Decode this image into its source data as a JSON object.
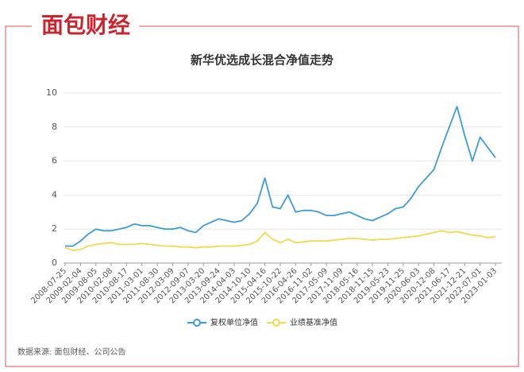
{
  "chart_data": {
    "type": "line",
    "logo": "面包财经",
    "title": "新华优选成长混合净值走势",
    "source": "数据来源: 面包财经、公司公告",
    "categories": [
      "2008-07-25",
      null,
      "2009-02-04",
      null,
      "2009-08-05",
      null,
      "2010-02-08",
      null,
      "2010-08-17",
      null,
      "2011-03-01",
      null,
      "2011-08-30",
      null,
      "2012-03-09",
      null,
      "2012-09-07",
      null,
      "2013-03-20",
      null,
      "2013-09-24",
      null,
      "2014-04-03",
      null,
      "2014-10-10",
      null,
      "2015-04-16",
      null,
      "2015-10-22",
      null,
      "2016-04-26",
      null,
      "2016-11-02",
      null,
      "2017-05-09",
      null,
      "2017-11-09",
      null,
      "2018-05-16",
      null,
      "2018-11-15",
      null,
      "2019-05-23",
      null,
      "2019-11-25",
      null,
      "2020-06-03",
      null,
      "2020-12-08",
      null,
      "2021-06-17",
      null,
      "2021-12-21",
      null,
      "2022-07-01",
      null,
      "2023-01-03"
    ],
    "series": [
      {
        "name": "复权单位净值",
        "color": "#3b9bd8",
        "values": [
          1.0,
          1.0,
          1.3,
          1.7,
          2.0,
          1.9,
          1.9,
          2.0,
          2.1,
          2.3,
          2.2,
          2.2,
          2.1,
          2.0,
          2.0,
          2.1,
          1.9,
          1.8,
          2.2,
          2.4,
          2.6,
          2.5,
          2.4,
          2.5,
          2.9,
          3.5,
          5.0,
          3.3,
          3.2,
          4.0,
          3.0,
          3.1,
          3.1,
          3.0,
          2.8,
          2.8,
          2.9,
          3.0,
          2.8,
          2.6,
          2.5,
          2.7,
          2.9,
          3.2,
          3.3,
          3.8,
          4.5,
          5.0,
          5.5,
          6.8,
          8.0,
          9.2,
          7.5,
          6.0,
          7.4,
          6.8,
          6.2
        ]
      },
      {
        "name": "业绩基准净值",
        "color": "#f3d84a",
        "values": [
          0.9,
          0.75,
          0.8,
          1.0,
          1.1,
          1.15,
          1.2,
          1.1,
          1.1,
          1.1,
          1.15,
          1.1,
          1.05,
          1.0,
          1.0,
          0.95,
          0.95,
          0.9,
          0.95,
          0.95,
          1.0,
          1.0,
          1.0,
          1.05,
          1.1,
          1.3,
          1.8,
          1.4,
          1.2,
          1.4,
          1.2,
          1.25,
          1.3,
          1.3,
          1.3,
          1.35,
          1.4,
          1.45,
          1.45,
          1.4,
          1.35,
          1.4,
          1.4,
          1.45,
          1.5,
          1.55,
          1.6,
          1.7,
          1.8,
          1.9,
          1.8,
          1.85,
          1.75,
          1.65,
          1.6,
          1.5,
          1.55
        ]
      }
    ],
    "ylim": [
      0,
      10
    ],
    "yticks": [
      0,
      2,
      4,
      6,
      8,
      10
    ],
    "grid": true
  }
}
